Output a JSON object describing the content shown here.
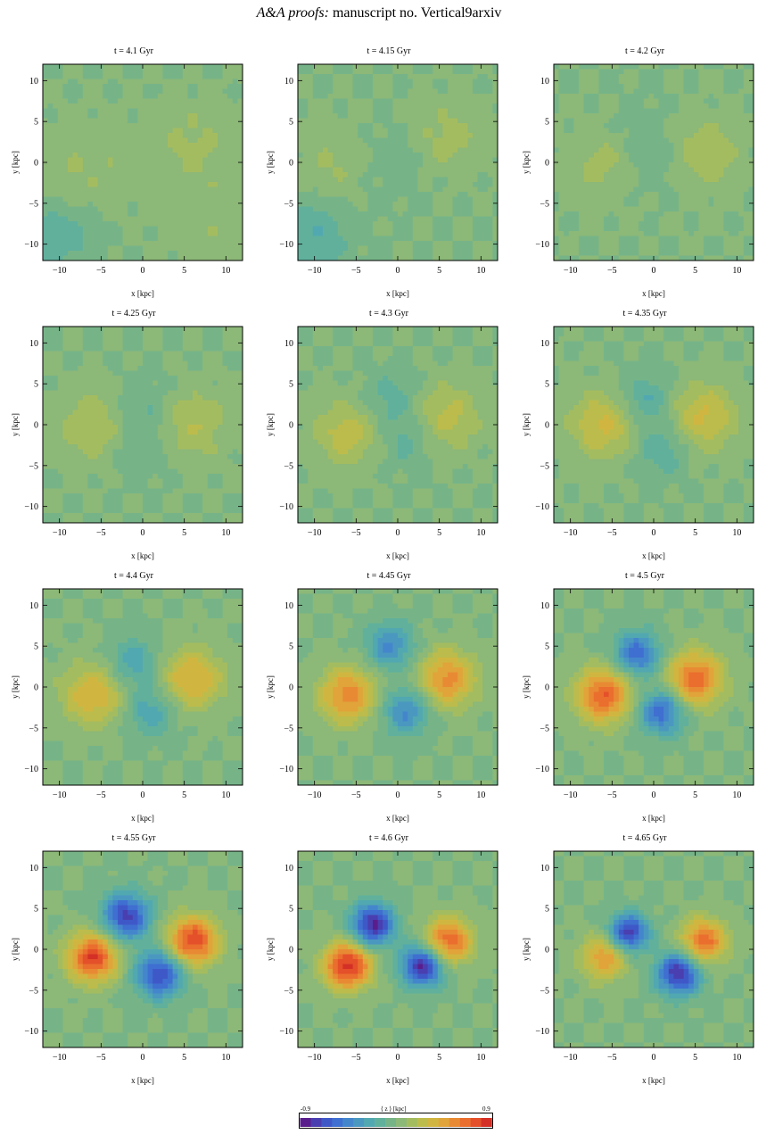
{
  "header": {
    "journal": "A&A proofs:",
    "manuscript": "manuscript no. Vertical9arxiv"
  },
  "colorbar": {
    "label": "⟨ z ⟩ [kpc]",
    "min_label": "-0.9",
    "max_label": "0.9",
    "min": -0.9,
    "max": 0.9,
    "colors": [
      "#5a1e8c",
      "#4a3fb0",
      "#3f58c8",
      "#3f6fd0",
      "#4486cc",
      "#4a98c0",
      "#52a8b0",
      "#60b09c",
      "#76b488",
      "#8cb878",
      "#a4bc60",
      "#bcbc4c",
      "#d0b640",
      "#e0a43a",
      "#e88a34",
      "#ea6e2e",
      "#e4502a",
      "#d43026"
    ]
  },
  "chart_data": [
    {
      "type": "heatmap",
      "title": "t = 4.1 Gyr",
      "xlabel": "x [kpc]",
      "ylabel": "y [kpc]",
      "xlim": [
        -12,
        12
      ],
      "ylim": [
        -12,
        12
      ],
      "xticks": [
        -10,
        -5,
        0,
        5,
        10
      ],
      "yticks": [
        -10,
        -5,
        0,
        5,
        10
      ],
      "amplitude": 0.12,
      "blobs": [
        [
          -7,
          -1,
          4,
          0.1
        ],
        [
          6,
          2,
          3.5,
          0.12
        ],
        [
          -10,
          -9,
          3,
          -0.18
        ],
        [
          9,
          -8,
          4,
          0.08
        ]
      ]
    },
    {
      "type": "heatmap",
      "title": "t = 4.15 Gyr",
      "xlabel": "x [kpc]",
      "ylabel": "y [kpc]",
      "xlim": [
        -12,
        12
      ],
      "ylim": [
        -12,
        12
      ],
      "xticks": [
        -10,
        -5,
        0,
        5,
        10
      ],
      "yticks": [
        -10,
        -5,
        0,
        5,
        10
      ],
      "amplitude": 0.15,
      "blobs": [
        [
          -7,
          0,
          3,
          0.12
        ],
        [
          6,
          3,
          3,
          0.14
        ],
        [
          -1,
          0,
          3,
          -0.08
        ],
        [
          -10,
          -9,
          3,
          -0.2
        ]
      ]
    },
    {
      "type": "heatmap",
      "title": "t = 4.2 Gyr",
      "xlabel": "x [kpc]",
      "ylabel": "y [kpc]",
      "xlim": [
        -12,
        12
      ],
      "ylim": [
        -12,
        12
      ],
      "xticks": [
        -10,
        -5,
        0,
        5,
        10
      ],
      "yticks": [
        -10,
        -5,
        0,
        5,
        10
      ],
      "amplitude": 0.18,
      "blobs": [
        [
          -6,
          0,
          3,
          0.14
        ],
        [
          6,
          1,
          3,
          0.18
        ],
        [
          0,
          0,
          2.5,
          -0.1
        ],
        [
          -2,
          4,
          2.5,
          -0.06
        ]
      ]
    },
    {
      "type": "heatmap",
      "title": "t = 4.25 Gyr",
      "xlabel": "x [kpc]",
      "ylabel": "y [kpc]",
      "xlim": [
        -12,
        12
      ],
      "ylim": [
        -12,
        12
      ],
      "xticks": [
        -10,
        -5,
        0,
        5,
        10
      ],
      "yticks": [
        -10,
        -5,
        0,
        5,
        10
      ],
      "amplitude": 0.22,
      "blobs": [
        [
          -6,
          0,
          3,
          0.2
        ],
        [
          6,
          0,
          3,
          0.2
        ],
        [
          0,
          2,
          2.5,
          -0.12
        ],
        [
          0,
          -3,
          2.5,
          -0.1
        ]
      ]
    },
    {
      "type": "heatmap",
      "title": "t = 4.3 Gyr",
      "xlabel": "x [kpc]",
      "ylabel": "y [kpc]",
      "xlim": [
        -12,
        12
      ],
      "ylim": [
        -12,
        12
      ],
      "xticks": [
        -10,
        -5,
        0,
        5,
        10
      ],
      "yticks": [
        -10,
        -5,
        0,
        5,
        10
      ],
      "amplitude": 0.26,
      "blobs": [
        [
          -6,
          -1,
          2.8,
          0.26
        ],
        [
          6,
          1,
          2.8,
          0.24
        ],
        [
          -1,
          3,
          2.3,
          -0.16
        ],
        [
          1,
          -2,
          2.3,
          -0.14
        ]
      ]
    },
    {
      "type": "heatmap",
      "title": "t = 4.35 Gyr",
      "xlabel": "x [kpc]",
      "ylabel": "y [kpc]",
      "xlim": [
        -12,
        12
      ],
      "ylim": [
        -12,
        12
      ],
      "xticks": [
        -10,
        -5,
        0,
        5,
        10
      ],
      "yticks": [
        -10,
        -5,
        0,
        5,
        10
      ],
      "amplitude": 0.32,
      "blobs": [
        [
          -6,
          0,
          2.8,
          0.32
        ],
        [
          6,
          1,
          2.8,
          0.32
        ],
        [
          -1,
          3,
          2.2,
          -0.22
        ],
        [
          1,
          -3,
          2.2,
          -0.2
        ]
      ]
    },
    {
      "type": "heatmap",
      "title": "t = 4.4 Gyr",
      "xlabel": "x [kpc]",
      "ylabel": "y [kpc]",
      "xlim": [
        -12,
        12
      ],
      "ylim": [
        -12,
        12
      ],
      "xticks": [
        -10,
        -5,
        0,
        5,
        10
      ],
      "yticks": [
        -10,
        -5,
        0,
        5,
        10
      ],
      "amplitude": 0.4,
      "blobs": [
        [
          -6,
          -1,
          2.6,
          0.4
        ],
        [
          6,
          1,
          2.6,
          0.42
        ],
        [
          -1,
          3,
          2.1,
          -0.28
        ],
        [
          1,
          -3,
          2.1,
          -0.28
        ]
      ]
    },
    {
      "type": "heatmap",
      "title": "t = 4.45 Gyr",
      "xlabel": "x [kpc]",
      "ylabel": "y [kpc]",
      "xlim": [
        -12,
        12
      ],
      "ylim": [
        -12,
        12
      ],
      "xticks": [
        -10,
        -5,
        0,
        5,
        10
      ],
      "yticks": [
        -10,
        -5,
        0,
        5,
        10
      ],
      "amplitude": 0.52,
      "blobs": [
        [
          -6,
          -1,
          2.4,
          0.56
        ],
        [
          6,
          1,
          2.4,
          0.54
        ],
        [
          -1,
          5,
          2,
          -0.42
        ],
        [
          1,
          -3,
          2,
          -0.42
        ]
      ]
    },
    {
      "type": "heatmap",
      "title": "t = 4.5 Gyr",
      "xlabel": "x [kpc]",
      "ylabel": "y [kpc]",
      "xlim": [
        -12,
        12
      ],
      "ylim": [
        -12,
        12
      ],
      "xticks": [
        -10,
        -5,
        0,
        5,
        10
      ],
      "yticks": [
        -10,
        -5,
        0,
        5,
        10
      ],
      "amplitude": 0.66,
      "blobs": [
        [
          -6,
          -1,
          2.3,
          0.7
        ],
        [
          5,
          1,
          2.3,
          0.68
        ],
        [
          -2,
          4,
          1.9,
          -0.58
        ],
        [
          1,
          -3,
          1.9,
          -0.58
        ]
      ]
    },
    {
      "type": "heatmap",
      "title": "t = 4.55 Gyr",
      "xlabel": "x [kpc]",
      "ylabel": "y [kpc]",
      "xlim": [
        -12,
        12
      ],
      "ylim": [
        -12,
        12
      ],
      "xticks": [
        -10,
        -5,
        0,
        5,
        10
      ],
      "yticks": [
        -10,
        -5,
        0,
        5,
        10
      ],
      "amplitude": 0.78,
      "blobs": [
        [
          -6,
          -1,
          2.1,
          0.8
        ],
        [
          6,
          1,
          2.1,
          0.8
        ],
        [
          -2,
          4,
          2,
          -0.74
        ],
        [
          2,
          -3,
          2,
          -0.72
        ]
      ]
    },
    {
      "type": "heatmap",
      "title": "t = 4.6 Gyr",
      "xlabel": "x [kpc]",
      "ylabel": "y [kpc]",
      "xlim": [
        -12,
        12
      ],
      "ylim": [
        -12,
        12
      ],
      "xticks": [
        -10,
        -5,
        0,
        5,
        10
      ],
      "yticks": [
        -10,
        -5,
        0,
        5,
        10
      ],
      "amplitude": 0.82,
      "blobs": [
        [
          -6,
          -2,
          2,
          0.86
        ],
        [
          6,
          1,
          2,
          0.7
        ],
        [
          -3,
          3,
          1.8,
          -0.84
        ],
        [
          3,
          -2,
          1.8,
          -0.84
        ]
      ]
    },
    {
      "type": "heatmap",
      "title": "t = 4.65 Gyr",
      "xlabel": "x [kpc]",
      "ylabel": "y [kpc]",
      "xlim": [
        -12,
        12
      ],
      "ylim": [
        -12,
        12
      ],
      "xticks": [
        -10,
        -5,
        0,
        5,
        10
      ],
      "yticks": [
        -10,
        -5,
        0,
        5,
        10
      ],
      "amplitude": 0.72,
      "blobs": [
        [
          -6,
          -1,
          1.9,
          0.5
        ],
        [
          6,
          1,
          1.9,
          0.66
        ],
        [
          -3,
          2,
          1.6,
          -0.8
        ],
        [
          3,
          -3,
          1.8,
          -0.82
        ]
      ]
    }
  ]
}
